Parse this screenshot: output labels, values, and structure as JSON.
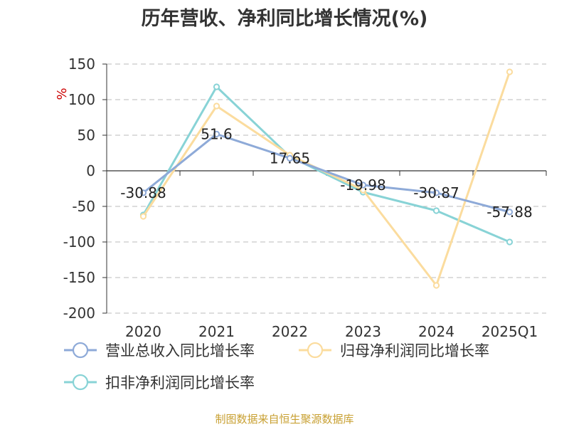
{
  "title": "历年营收、净利同比增长情况(%)",
  "source": "制图数据来自恒生聚源数据库",
  "colors": {
    "grid": "#bbbbbb",
    "axis": "#333333"
  },
  "chart_data": {
    "type": "line",
    "categories": [
      "2020",
      "2021",
      "2022",
      "2023",
      "2024",
      "2025Q1"
    ],
    "ylabel": "%",
    "ylim": [
      -200,
      150
    ],
    "yticks": [
      150,
      100,
      50,
      0,
      -50,
      -100,
      -150,
      -200
    ],
    "grid": true,
    "legend_position": "bottom-left",
    "series": [
      {
        "name": "营业总收入同比增长率",
        "color": "#8eaad8",
        "values": [
          -30.88,
          51.6,
          17.65,
          -19.98,
          -30.87,
          -57.88
        ],
        "labels": [
          "-30.88",
          "51.6",
          "17.65",
          "-19.98",
          "-30.87",
          "-57.88"
        ]
      },
      {
        "name": "归母净利润同比增长率",
        "color": "#fbdc9e",
        "values": [
          -64,
          91,
          22,
          -27,
          -161,
          139
        ]
      },
      {
        "name": "扣非净利润同比增长率",
        "color": "#88d3d6",
        "values": [
          -62,
          118,
          20,
          -30,
          -56,
          -100
        ]
      }
    ]
  }
}
